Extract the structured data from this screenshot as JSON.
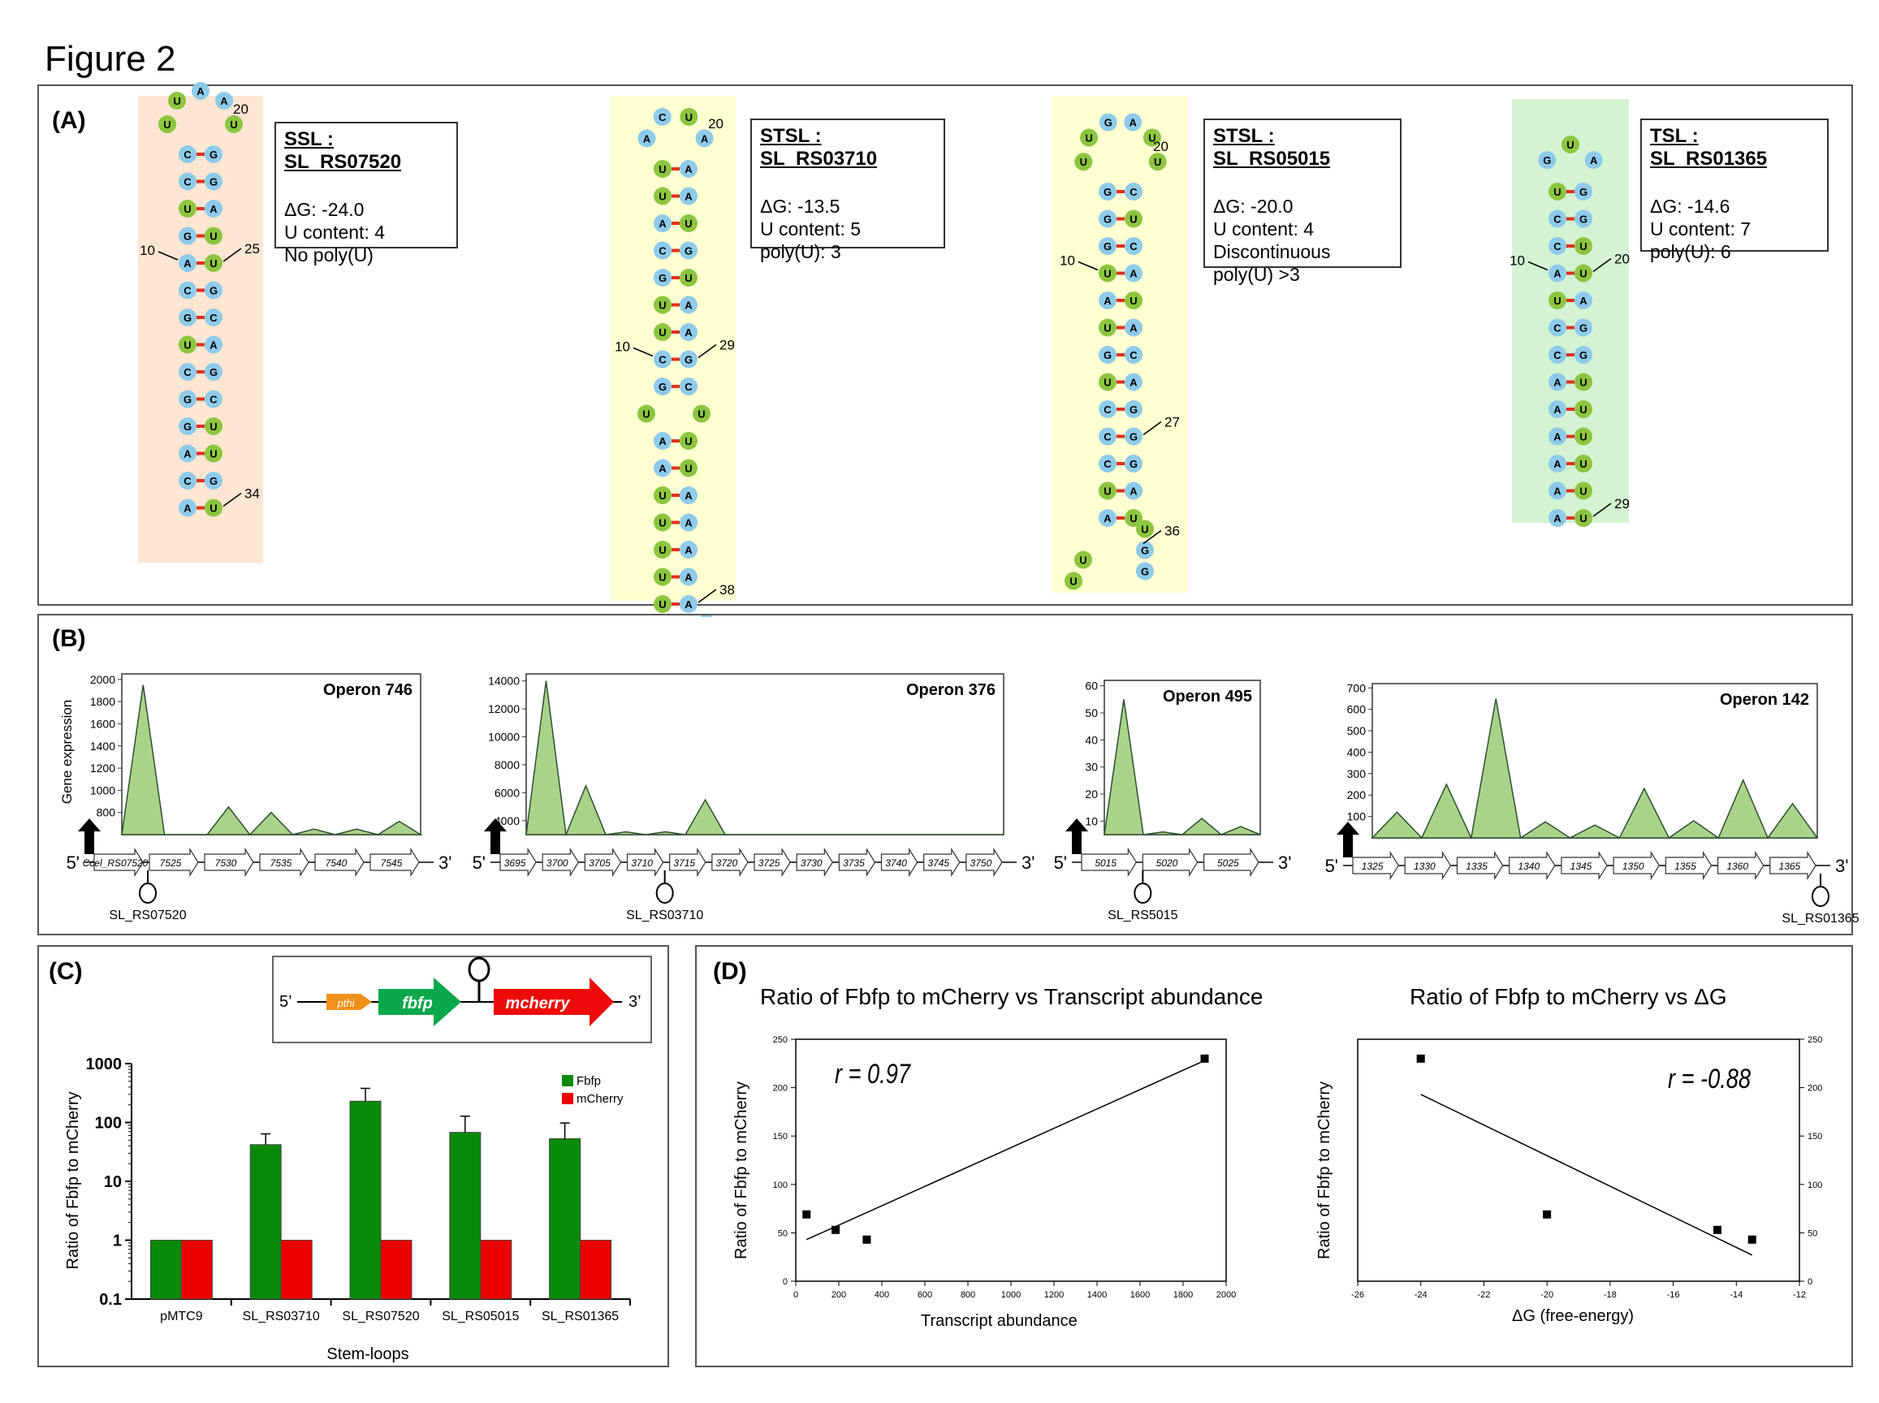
{
  "figure_title": "Figure 2",
  "panels": {
    "a": "(A)",
    "b": "(B)",
    "c": "(C)",
    "d": "(D)"
  },
  "panel_a": {
    "structures": [
      {
        "name": "SSL : SL_RS07520",
        "lines": [
          "ΔG: -24.0",
          "U content: 4",
          "No poly(U)"
        ],
        "color": "#fde6d2",
        "loop": [
          "U",
          "U",
          "A",
          "A",
          "U"
        ],
        "pairs": [
          [
            "C",
            "G"
          ],
          [
            "C",
            "G"
          ],
          [
            "U",
            "A"
          ],
          [
            "G",
            "U"
          ],
          [
            "A",
            "U"
          ],
          [
            "C",
            "G"
          ],
          [
            "G",
            "C"
          ],
          [
            "U",
            "A"
          ],
          [
            "C",
            "G"
          ],
          [
            "G",
            "C"
          ],
          [
            "G",
            "U"
          ],
          [
            "A",
            "U"
          ],
          [
            "C",
            "G"
          ],
          [
            "A",
            "U"
          ]
        ],
        "nums": [
          [
            "20",
            "loop"
          ],
          [
            "10",
            4
          ],
          [
            "25",
            4
          ],
          [
            "34",
            13
          ]
        ],
        "tail": []
      },
      {
        "name": "STSL : SL_RS03710",
        "lines": [
          "ΔG:  -13.5",
          "U content: 5",
          "poly(U): 3"
        ],
        "color": "#ffffd2",
        "loop": [
          "A",
          "C",
          "U",
          "A"
        ],
        "pairs": [
          [
            "U",
            "A"
          ],
          [
            "U",
            "A"
          ],
          [
            "A",
            "U"
          ],
          [
            "C",
            "G"
          ],
          [
            "G",
            "U"
          ],
          [
            "U",
            "A"
          ],
          [
            "U",
            "A"
          ],
          [
            "C",
            "G"
          ],
          [
            "G",
            "C"
          ],
          [
            "BULGE",
            "U"
          ],
          [
            "A",
            "U"
          ],
          [
            "A",
            "U"
          ],
          [
            "U",
            "A"
          ],
          [
            "U",
            "A"
          ],
          [
            "U",
            "A"
          ],
          [
            "U",
            "A"
          ],
          [
            "U",
            "A"
          ]
        ],
        "nums": [
          [
            "20",
            "loop"
          ],
          [
            "10",
            7
          ],
          [
            "29",
            7
          ],
          [
            "38",
            16
          ]
        ],
        "tail": [
          "U",
          "A"
        ]
      },
      {
        "name": "STSL : SL_RS05015",
        "lines": [
          "ΔG: -20.0",
          "U content: 4",
          "Discontinuous",
          "poly(U) >3"
        ],
        "color": "#ffffd2",
        "loop": [
          "U",
          "U",
          "G",
          "A",
          "U",
          "U"
        ],
        "pairs": [
          [
            "G",
            "C"
          ],
          [
            "G",
            "U"
          ],
          [
            "G",
            "C"
          ],
          [
            "U",
            "A"
          ],
          [
            "A",
            "U"
          ],
          [
            "U",
            "A"
          ],
          [
            "G",
            "C"
          ],
          [
            "U",
            "A"
          ],
          [
            "C",
            "G"
          ],
          [
            "C",
            "G"
          ],
          [
            "C",
            "G"
          ],
          [
            "U",
            "A"
          ],
          [
            "A",
            "U"
          ]
        ],
        "nums": [
          [
            "20",
            "loop"
          ],
          [
            "10",
            3
          ],
          [
            "27",
            9
          ],
          [
            "36",
            13
          ]
        ],
        "tail": [
          "U",
          "G",
          "G",
          "U",
          "U"
        ]
      },
      {
        "name": "TSL : SL_RS01365",
        "lines": [
          "ΔG: -14.6",
          "U content: 7",
          "poly(U): 6"
        ],
        "color": "#d3f3d3",
        "loop": [
          "G",
          "U",
          "A"
        ],
        "pairs": [
          [
            "U",
            "G"
          ],
          [
            "C",
            "G"
          ],
          [
            "C",
            "U"
          ],
          [
            "A",
            "U"
          ],
          [
            "U",
            "A"
          ],
          [
            "C",
            "G"
          ],
          [
            "C",
            "G"
          ],
          [
            "A",
            "U"
          ],
          [
            "A",
            "U"
          ],
          [
            "A",
            "U"
          ],
          [
            "A",
            "U"
          ],
          [
            "A",
            "U"
          ],
          [
            "A",
            "U"
          ]
        ],
        "nums": [
          [
            "10",
            3
          ],
          [
            "20",
            3
          ],
          [
            "29",
            12
          ]
        ],
        "tail": []
      }
    ]
  },
  "panel_b": {
    "ylabel": "Gene expression",
    "five": "5'",
    "three": "3'",
    "operons": [
      {
        "title": "Operon 746",
        "yticks": [
          "2000",
          "1800",
          "1600",
          "1400",
          "1200",
          "1000",
          "800"
        ],
        "ymin": 600,
        "ymax": 2050,
        "peaks": [
          1950,
          0,
          850,
          800,
          650,
          650,
          720
        ],
        "genes": [
          "Ccel_RS07520",
          "7525",
          "7530",
          "7535",
          "7540",
          "7545"
        ],
        "sl": "SL_RS07520"
      },
      {
        "title": "Operon 376",
        "yticks": [
          "14000",
          "12000",
          "10000",
          "8000",
          "6000",
          "4000"
        ],
        "ymin": 3000,
        "ymax": 14500,
        "peaks": [
          14000,
          6500,
          3200,
          3200,
          5500,
          3000,
          3000,
          3000,
          3000,
          3000,
          3000,
          3000
        ],
        "genes": [
          "3695",
          "3700",
          "3705",
          "3710",
          "3715",
          "3720",
          "3725",
          "3730",
          "3735",
          "3740",
          "3745",
          "3750"
        ],
        "sl": "SL_RS03710"
      },
      {
        "title": "Operon 495",
        "yticks": [
          "60",
          "50",
          "40",
          "30",
          "20",
          "10"
        ],
        "ymin": 5,
        "ymax": 62,
        "peaks": [
          55,
          6,
          11,
          8
        ],
        "genes": [
          "5015",
          "5020",
          "5025"
        ],
        "sl": "SL_RS5015"
      },
      {
        "title": "Operon 142",
        "yticks": [
          "700",
          "600",
          "500",
          "400",
          "300",
          "200",
          "100"
        ],
        "ymin": 0,
        "ymax": 720,
        "peaks": [
          120,
          250,
          650,
          75,
          60,
          230,
          80,
          270,
          160
        ],
        "genes": [
          "1325",
          "1330",
          "1335",
          "1340",
          "1345",
          "1350",
          "1355",
          "1360",
          "1365"
        ],
        "sl": "SL_RS01365"
      }
    ]
  },
  "panel_c": {
    "construct": {
      "five": "5’",
      "three": "3’",
      "pthi": "pthi",
      "fbfp": "fbfp",
      "mcherry": "mcherry"
    },
    "ylabel": "Ratio of Fbfp to mCherry",
    "xlabel": "Stem-loops",
    "legend": [
      "Fbfp",
      "mCherry"
    ]
  },
  "panel_d": {
    "titles": [
      "Ratio of Fbfp to mCherry vs Transcript abundance",
      "Ratio of Fbfp to mCherry vs ΔG"
    ],
    "ylabels": [
      "Ratio of Fbfp to mCherry",
      "Ratio of Fbfp to mCherry"
    ],
    "xlabels": [
      "Transcript abundance",
      "ΔG (free-energy)"
    ],
    "r": [
      "r = 0.97",
      "r = -0.88"
    ]
  },
  "chart_data": [
    {
      "type": "bar",
      "title": "",
      "xlabel": "Stem-loops",
      "ylabel": "Ratio of Fbfp to mCherry",
      "yscale": "log",
      "ylim": [
        0.1,
        1000
      ],
      "yticks": [
        "1000",
        "100",
        "10",
        "1",
        "0.1"
      ],
      "categories": [
        "pMTC9",
        "SL_RS03710",
        "SL_RS07520",
        "SL_RS05015",
        "SL_RS01365"
      ],
      "series": [
        {
          "name": "Fbfp",
          "color": "#0a8a0a",
          "values": [
            1,
            42,
            230,
            68,
            53
          ],
          "errors": [
            0,
            22,
            150,
            60,
            45
          ]
        },
        {
          "name": "mCherry",
          "color": "#ee0000",
          "values": [
            1,
            1,
            1,
            1,
            1
          ]
        }
      ]
    },
    {
      "type": "scatter",
      "title": "Ratio of Fbfp to mCherry vs Transcript abundance",
      "xlabel": "Transcript abundance",
      "ylabel": "Ratio of Fbfp to mCherry",
      "xlim": [
        0,
        2000
      ],
      "ylim": [
        0,
        250
      ],
      "xticks": [
        "0",
        "200",
        "400",
        "600",
        "800",
        "1000",
        "1200",
        "1400",
        "1600",
        "1800",
        "2000"
      ],
      "yticks": [
        "0",
        "50",
        "100",
        "150",
        "200",
        "250"
      ],
      "points": [
        [
          50,
          69
        ],
        [
          185,
          53
        ],
        [
          330,
          43
        ],
        [
          1900,
          230
        ]
      ],
      "fit": [
        [
          50,
          43
        ],
        [
          1900,
          228
        ]
      ],
      "annotation": "r = 0.97"
    },
    {
      "type": "scatter",
      "title": "Ratio of Fbfp to mCherry vs ΔG",
      "xlabel": "ΔG (free-energy)",
      "ylabel": "Ratio of Fbfp to mCherry",
      "xlim": [
        -26,
        -12
      ],
      "ylim": [
        0,
        250
      ],
      "xticks": [
        "-26",
        "-24",
        "-22",
        "-20",
        "-18",
        "-16",
        "-14",
        "-12"
      ],
      "yticks": [
        "0",
        "50",
        "100",
        "150",
        "200",
        "250"
      ],
      "points": [
        [
          -24,
          230
        ],
        [
          -20,
          69
        ],
        [
          -14.6,
          53
        ],
        [
          -13.5,
          43
        ]
      ],
      "fit": [
        [
          -24,
          193
        ],
        [
          -13.5,
          27
        ]
      ],
      "annotation": "r = -0.88"
    }
  ]
}
